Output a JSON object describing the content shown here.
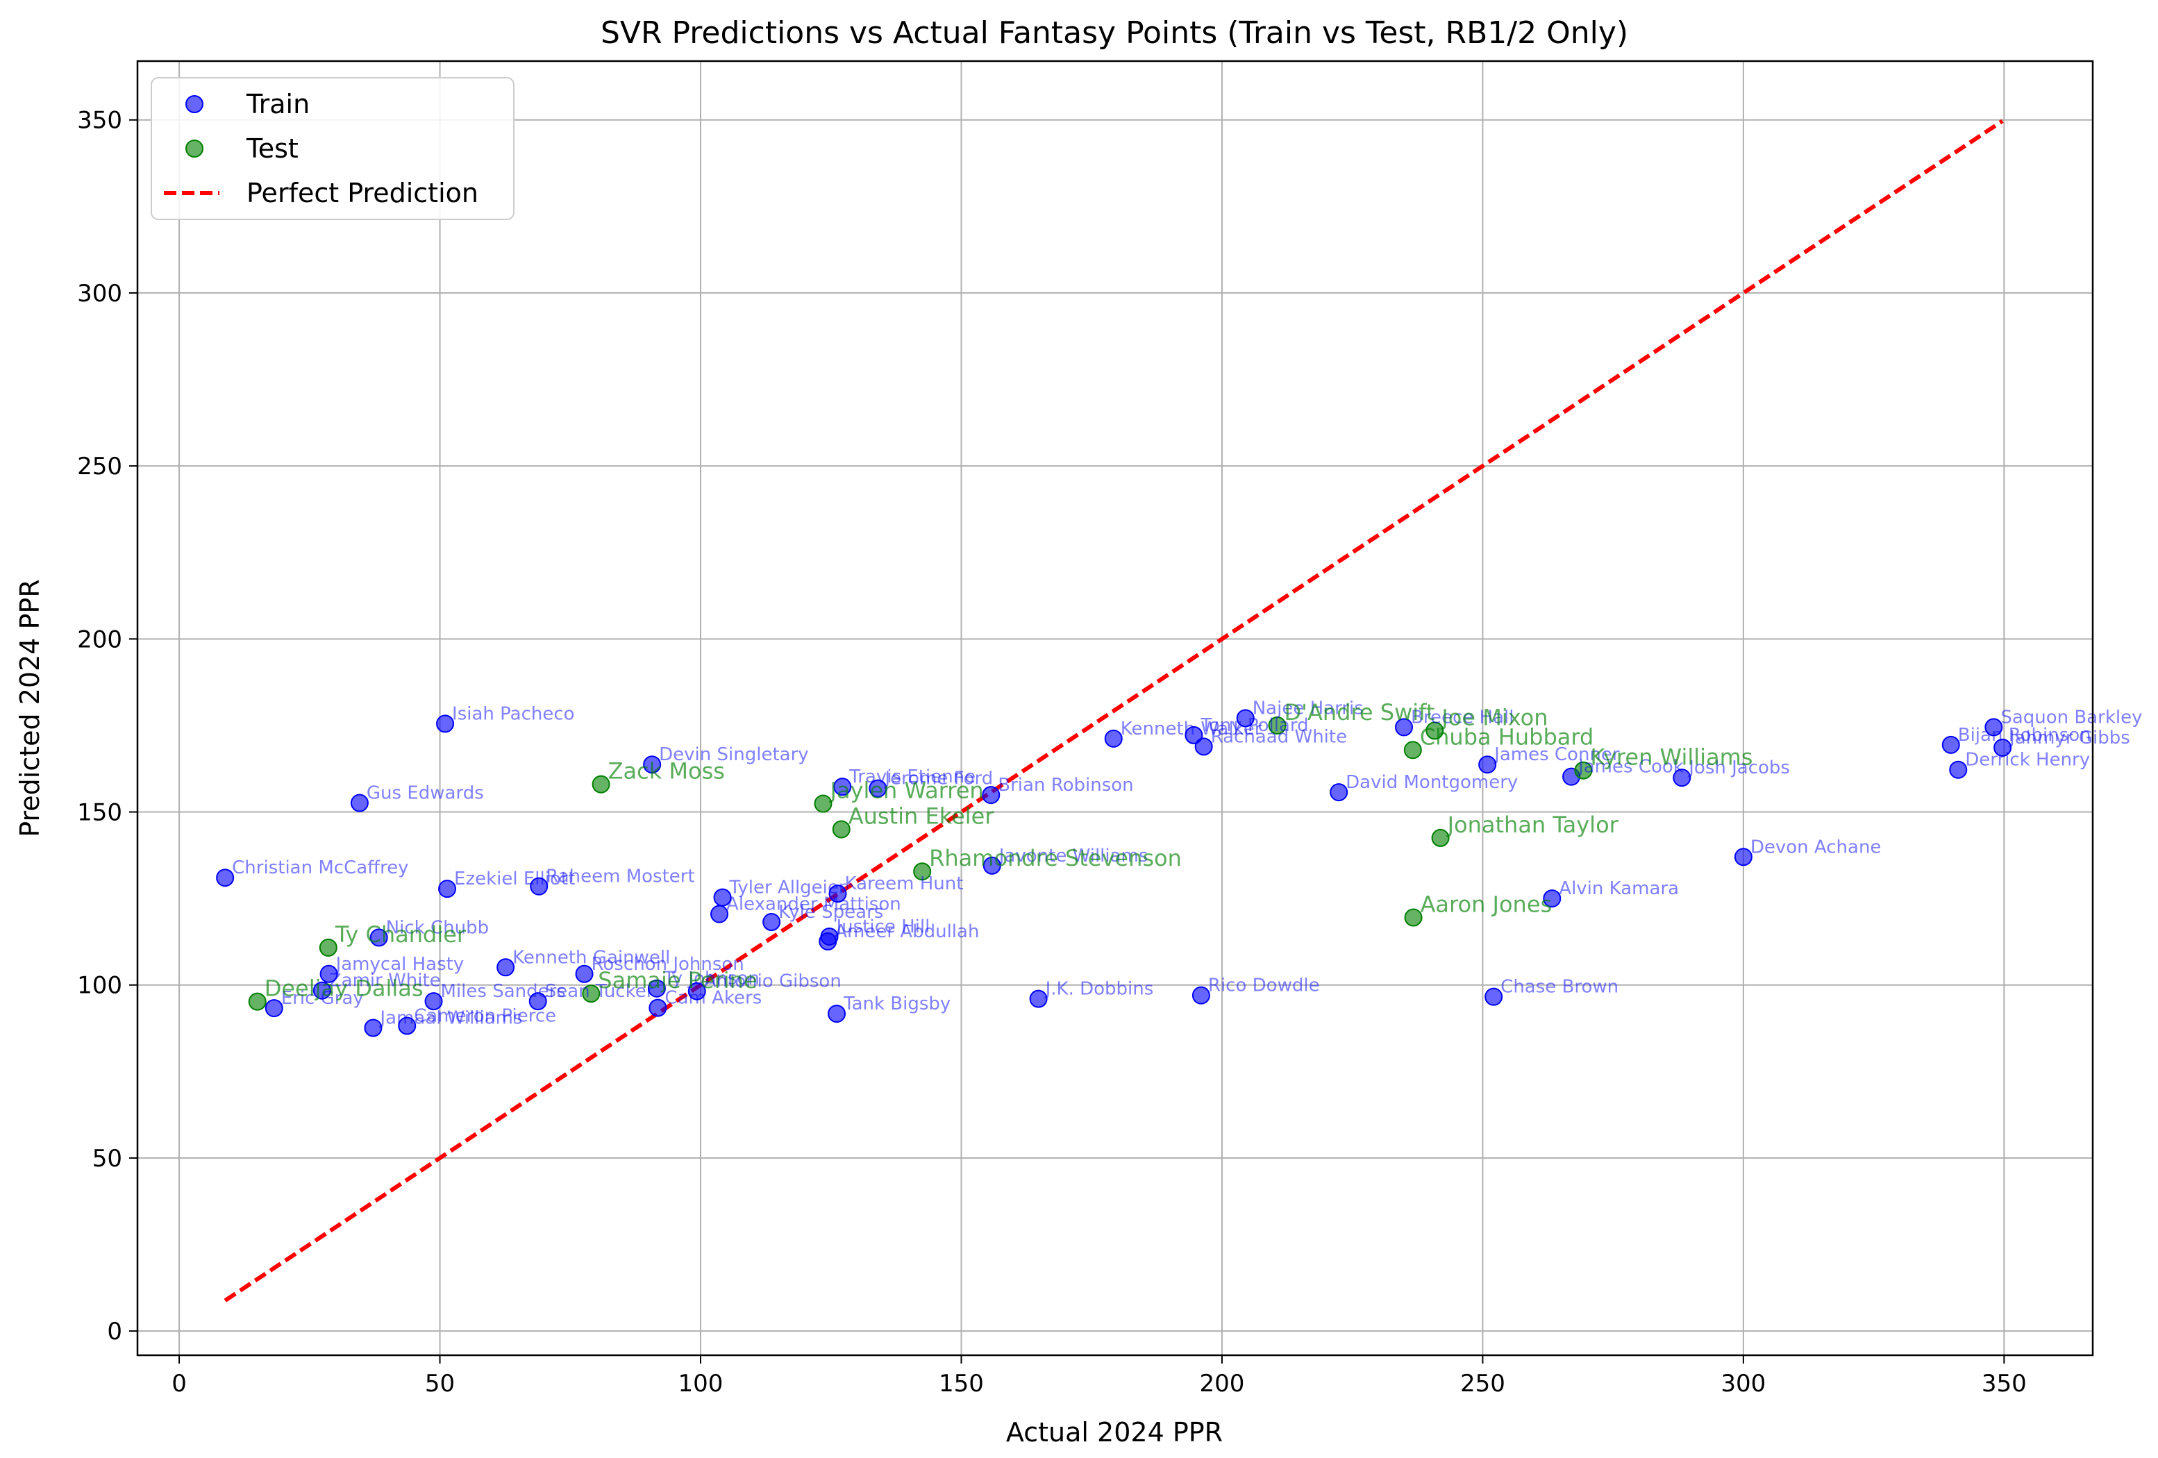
{
  "chart_data": {
    "type": "scatter",
    "title": "SVR Predictions vs Actual Fantasy Points (Train vs Test, RB1/2 Only)",
    "xlabel": "Actual 2024 PPR",
    "ylabel": "Predicted 2024 PPR",
    "xlim": [
      -8,
      367
    ],
    "ylim": [
      -7,
      367
    ],
    "xticks": [
      0,
      50,
      100,
      150,
      200,
      250,
      300,
      350
    ],
    "yticks": [
      0,
      50,
      100,
      150,
      200,
      250,
      300,
      350
    ],
    "grid": true,
    "legend_position": "top-left",
    "colors": {
      "train": "#0000ff",
      "test": "#008000",
      "perfect": "#ff0000"
    },
    "legend": {
      "train": "Train",
      "test": "Test",
      "perfect": "Perfect Prediction"
    },
    "series": [
      {
        "name": "Train",
        "points": [
          {
            "x": 51.0,
            "y": 175.5,
            "label": "Isiah Pacheco"
          },
          {
            "x": 90.7,
            "y": 163.7,
            "label": "Devin Singletary"
          },
          {
            "x": 34.6,
            "y": 152.6,
            "label": "Gus Edwards"
          },
          {
            "x": 8.8,
            "y": 131.0,
            "label": "Christian McCaffrey"
          },
          {
            "x": 51.4,
            "y": 127.8,
            "label": "Ezekiel Elliott"
          },
          {
            "x": 69.0,
            "y": 128.5,
            "label": "Raheem Mostert"
          },
          {
            "x": 38.3,
            "y": 113.7,
            "label": "Nick Chubb"
          },
          {
            "x": 28.7,
            "y": 103.2,
            "label": "Jamycal Hasty"
          },
          {
            "x": 27.4,
            "y": 98.4,
            "label": "Zamir White"
          },
          {
            "x": 18.2,
            "y": 93.3,
            "label": "Eric Gray"
          },
          {
            "x": 48.8,
            "y": 95.3,
            "label": "Miles Sanders"
          },
          {
            "x": 37.2,
            "y": 87.6,
            "label": "Jamaal Williams"
          },
          {
            "x": 43.7,
            "y": 88.2,
            "label": "Cameron Pierce"
          },
          {
            "x": 62.6,
            "y": 105.1,
            "label": "Kenneth Gainwell"
          },
          {
            "x": 68.8,
            "y": 95.3,
            "label": "Sean Tucker"
          },
          {
            "x": 77.7,
            "y": 103.2,
            "label": "Roschon Johnson"
          },
          {
            "x": 91.8,
            "y": 93.4,
            "label": "Cam Akers"
          },
          {
            "x": 91.6,
            "y": 99.0,
            "label": "Ty Johnson"
          },
          {
            "x": 99.3,
            "y": 98.2,
            "label": "Antonio Gibson"
          },
          {
            "x": 104.2,
            "y": 125.3,
            "label": "Tyler Allgeier"
          },
          {
            "x": 103.6,
            "y": 120.5,
            "label": "Alexander Mattison"
          },
          {
            "x": 113.6,
            "y": 118.2,
            "label": "Kyle Spears"
          },
          {
            "x": 124.7,
            "y": 114.0,
            "label": "Justice Hill"
          },
          {
            "x": 124.4,
            "y": 112.6,
            "label": "Ameer Abdullah"
          },
          {
            "x": 126.3,
            "y": 126.4,
            "label": "Kareem Hunt"
          },
          {
            "x": 126.1,
            "y": 91.7,
            "label": "Tank Bigsby"
          },
          {
            "x": 127.2,
            "y": 157.3,
            "label": "Travis Etienne"
          },
          {
            "x": 134.0,
            "y": 156.8,
            "label": "Jerome Ford"
          },
          {
            "x": 155.7,
            "y": 154.9,
            "label": "Brian Robinson"
          },
          {
            "x": 155.9,
            "y": 134.5,
            "label": "Javonte Williams"
          },
          {
            "x": 164.8,
            "y": 96.0,
            "label": "J.K. Dobbins"
          },
          {
            "x": 179.2,
            "y": 171.2,
            "label": "Kenneth Walker"
          },
          {
            "x": 194.6,
            "y": 172.2,
            "label": "Tony Pollard"
          },
          {
            "x": 196.5,
            "y": 168.9,
            "label": "Rachaad White"
          },
          {
            "x": 204.5,
            "y": 177.1,
            "label": "Najee Harris"
          },
          {
            "x": 196.0,
            "y": 97.0,
            "label": "Rico Dowdle"
          },
          {
            "x": 222.4,
            "y": 155.7,
            "label": "David Montgomery"
          },
          {
            "x": 234.9,
            "y": 174.5,
            "label": "Breece Hall"
          },
          {
            "x": 250.9,
            "y": 163.7,
            "label": "James Conner"
          },
          {
            "x": 252.1,
            "y": 96.6,
            "label": "Chase Brown"
          },
          {
            "x": 263.3,
            "y": 125.0,
            "label": "Alvin Kamara"
          },
          {
            "x": 267.0,
            "y": 160.2,
            "label": "James Cook"
          },
          {
            "x": 288.2,
            "y": 159.9,
            "label": "Josh Jacobs"
          },
          {
            "x": 300.0,
            "y": 137.0,
            "label": "Devon Achane"
          },
          {
            "x": 339.8,
            "y": 169.4,
            "label": "Bijan Robinson"
          },
          {
            "x": 341.2,
            "y": 162.2,
            "label": "Derrick Henry"
          },
          {
            "x": 348.0,
            "y": 174.5,
            "label": "Saquon Barkley"
          },
          {
            "x": 349.7,
            "y": 168.6,
            "label": "Jahmyr Gibbs"
          }
        ]
      },
      {
        "name": "Test",
        "points": [
          {
            "x": 80.9,
            "y": 158.0,
            "label": "Zack Moss"
          },
          {
            "x": 123.5,
            "y": 152.4,
            "label": "Jaylen Warren"
          },
          {
            "x": 127.0,
            "y": 145.0,
            "label": "Austin Ekeler"
          },
          {
            "x": 142.5,
            "y": 132.8,
            "label": "Rhamondre Stevenson"
          },
          {
            "x": 28.6,
            "y": 110.8,
            "label": "Ty Chandler"
          },
          {
            "x": 15.0,
            "y": 95.2,
            "label": "Deeljay Dallas"
          },
          {
            "x": 79.0,
            "y": 97.5,
            "label": "Samaje Perine"
          },
          {
            "x": 210.6,
            "y": 175.0,
            "label": "D'Andre Swift"
          },
          {
            "x": 240.8,
            "y": 173.5,
            "label": "Joe Mixon"
          },
          {
            "x": 236.6,
            "y": 167.9,
            "label": "Chuba Hubbard"
          },
          {
            "x": 269.3,
            "y": 162.0,
            "label": "Kyren Williams"
          },
          {
            "x": 241.9,
            "y": 142.5,
            "label": "Jonathan Taylor"
          },
          {
            "x": 236.7,
            "y": 119.5,
            "label": "Aaron Jones"
          }
        ]
      }
    ],
    "perfect_line": {
      "x": [
        8.8,
        349.7
      ],
      "y": [
        8.8,
        349.7
      ]
    }
  }
}
